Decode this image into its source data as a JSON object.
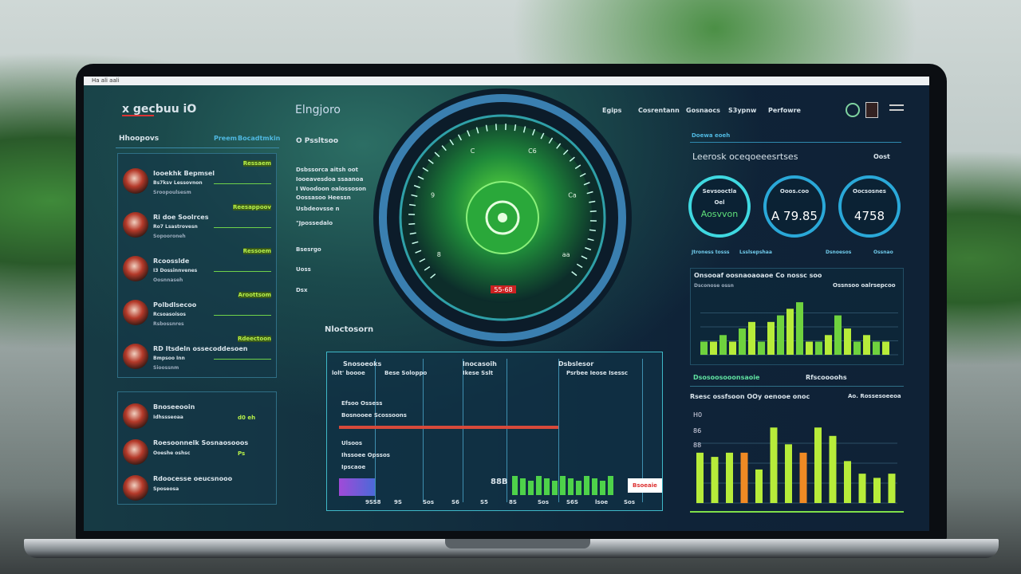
{
  "topbar": {
    "text": "Ha ali aali"
  },
  "header": {
    "logo": "x gecbuu iO",
    "title": "Elngjoro",
    "nav": [
      "Egips",
      "Cosrentann",
      "Gosnaocs",
      "S3ypnw",
      "Perfowre"
    ],
    "icons": [
      "status-ring-icon",
      "calendar-icon",
      "menu-icon"
    ]
  },
  "left_panel": {
    "title": "Hhoopovs",
    "links": [
      "Preem",
      "Bocadtmkin"
    ],
    "items": [
      {
        "name": "Iooekhk Bepmsel",
        "tag": "Ressaem",
        "meta": "Bs7ksv Lessovnon",
        "sub": "Sroopoulsesm"
      },
      {
        "name": "Ri doe Soolrces",
        "tag": "Reesappoov",
        "meta": "Ro7 Lsastrovesn",
        "sub": "Sopooroneh"
      },
      {
        "name": "Rcoosslde",
        "tag": "Ressoem",
        "meta": "I3 Dossinnvenes",
        "sub": "Oosnnaseh"
      },
      {
        "name": "Polbdlsecoo",
        "tag": "Aroottsom",
        "meta": "Rcsoasoisos",
        "sub": "Rsbossnres"
      },
      {
        "name": "RD Itsdeln ossecoddesoen",
        "tag": "Rdeectoon",
        "meta": "Bmpsoo Inn",
        "sub": "Sioossnm"
      }
    ]
  },
  "left_panel2": {
    "items": [
      {
        "name": "Bnoseeooin",
        "meta": "Idhssseoaa",
        "tag": "d0 eh"
      },
      {
        "name": "Roesoonnelk Sosnaosooos",
        "meta": "Ooeshe oshsc",
        "tag": "Ps"
      },
      {
        "name": "Rdoocesse oeucsnooo",
        "meta": "Sposeosa",
        "tag": ""
      }
    ]
  },
  "mid_column": {
    "title": "O Pssltsoo",
    "lines": [
      "Dsbssorca aitsh oot",
      "Iooeavesdoa ssaanoa",
      "I Woodoon oalossoson",
      "Oossasoo Heessn",
      "Usbdeovsse n",
      "\"Jpossedalo",
      "Bsesrgo",
      "Uoss",
      "Dsx"
    ]
  },
  "gauge": {
    "readout": "55-68",
    "ticks": [
      "8",
      "9",
      "C",
      "C6",
      "Ca",
      "aa"
    ],
    "accent": "#3fd24a"
  },
  "table_panel": {
    "title": "Nloctosorn",
    "cols": [
      "Snosoeoks",
      "lnocasoih",
      "Dsbslesor"
    ],
    "headers": [
      "lolt' boooe",
      "Bese Soloppo",
      "Ikese Sslt",
      "Psrbee Ieose Isessc"
    ],
    "rows": [
      "Efsoo Ossess",
      "Bosnooee Scossoons",
      "Ulsoos",
      "Ihssoee Opssos",
      "Ipscaoe"
    ],
    "badge": "Bsoeaie",
    "value": "88B",
    "footer": [
      "9SS8",
      "9S",
      "Sos",
      "S6",
      "S5",
      "8S",
      "Sos",
      "S6S",
      "lsoe",
      "Sos"
    ]
  },
  "right_panel": {
    "section": "Doewa eoeh",
    "title": "Leerosk oceqoeeesrtses",
    "tag": "Oost",
    "circles": [
      {
        "label": "Sevsooctla",
        "sub": "Oel",
        "value": "Aosvvon"
      },
      {
        "label": "Ooos.coo",
        "value": "A 79.85"
      },
      {
        "label": "Oocsosnes",
        "value": "4758"
      }
    ],
    "footer": [
      "Jtroness tosss",
      "Lsslsepshaa",
      "Dsnoesos",
      "Ossnao"
    ]
  },
  "chart_data": [
    {
      "type": "bar",
      "title": "Onsooaf oosnaoaoaoe Co nossc soo",
      "subtitle": "Dsconose ossn",
      "legend": "Ossnsoo oalrsepcoo",
      "values": [
        2,
        2,
        3,
        2,
        4,
        5,
        2,
        5,
        6,
        7,
        8,
        2,
        2,
        3,
        6,
        4,
        2,
        3,
        2,
        2
      ],
      "colors": [
        "#6fd23e",
        "#b7ec3a"
      ],
      "footer": [
        "Dsosoosooonsaoie",
        "Rfscoooohs"
      ]
    },
    {
      "type": "bar",
      "title": "Rsesc ossfsoon OOy oenooe onoc",
      "subtitle": "Ao. Rossesoeeoa",
      "ylabels": [
        "H0",
        "86",
        "88"
      ],
      "values": [
        6,
        5.5,
        6,
        6,
        4,
        9,
        7,
        6,
        9,
        8,
        5,
        3.5,
        3,
        3.5
      ],
      "colors": [
        "#b7ec3a",
        "#b7ec3a",
        "#b7ec3a",
        "#f08a24",
        "#b7ec3a",
        "#b7ec3a",
        "#b7ec3a",
        "#f08a24",
        "#b7ec3a",
        "#b7ec3a",
        "#b7ec3a",
        "#b7ec3a",
        "#b7ec3a",
        "#b7ec3a"
      ]
    }
  ]
}
